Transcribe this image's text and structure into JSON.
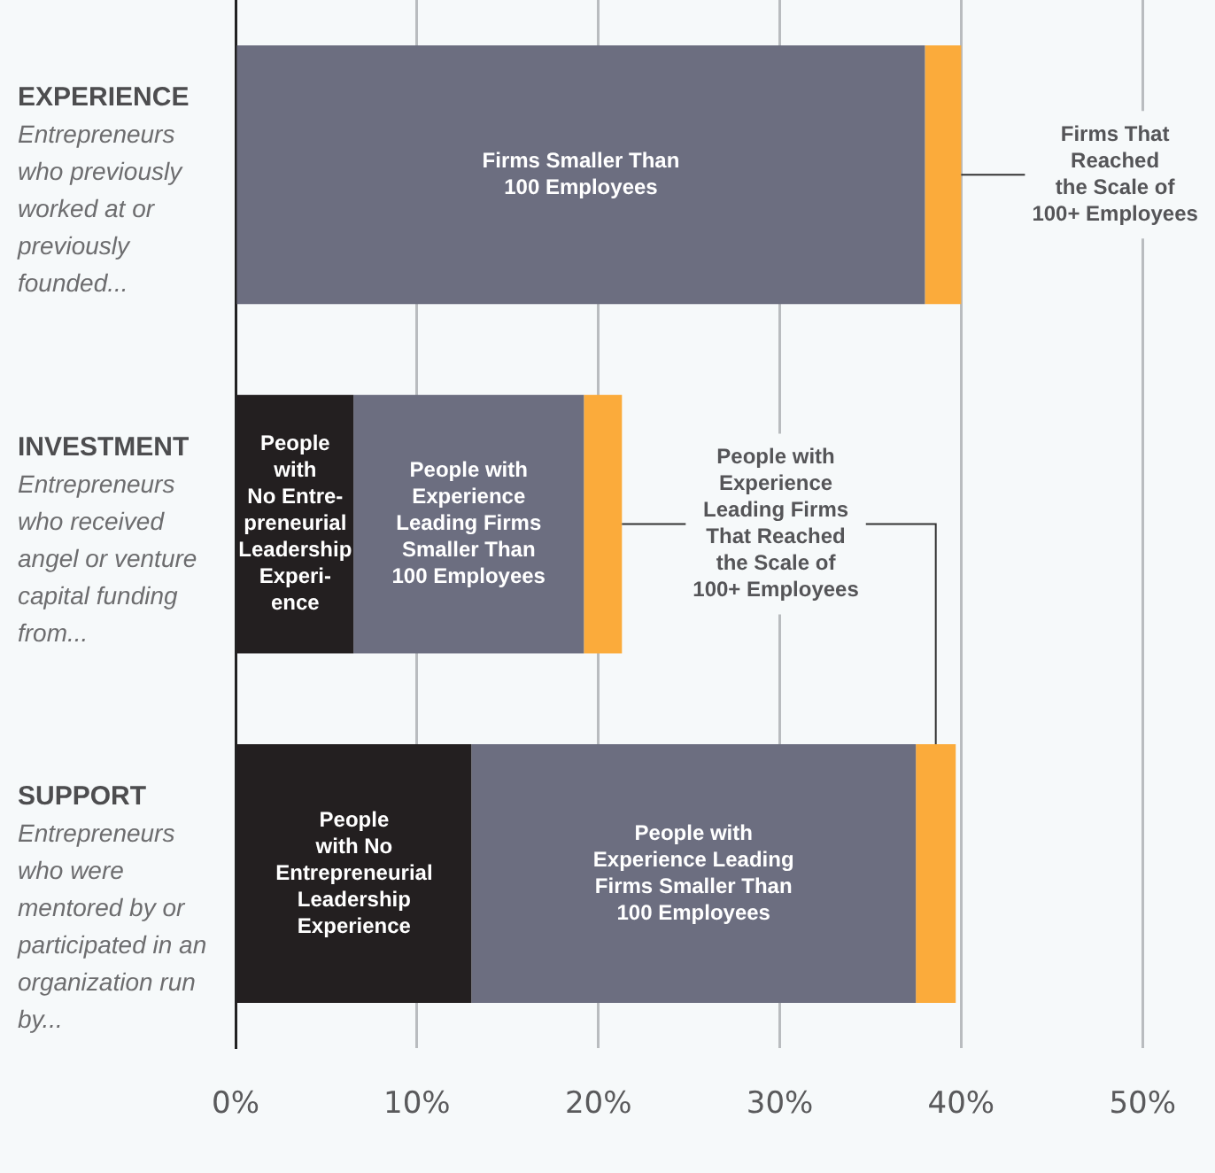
{
  "chart_data": {
    "type": "bar",
    "orientation": "horizontal",
    "stacked": true,
    "categories": [
      "EXPERIENCE",
      "INVESTMENT",
      "SUPPORT"
    ],
    "series": [
      {
        "color": "#231f20",
        "values": [
          null,
          6.5,
          13.0
        ],
        "value_labels": [
          null,
          "People\nwith\nNo Entre-\npreneurial\nLeadership\nExperi-\nence",
          "People\nwith No\nEntrepreneurial\nLeadership\nExperience"
        ]
      },
      {
        "color": "#6c6e80",
        "values": [
          38.0,
          12.7,
          24.5
        ],
        "value_labels": [
          "Firms Smaller Than\n100 Employees",
          "People with\nExperience\nLeading Firms\nSmaller Than\n100 Employees",
          "People with\nExperience Leading\nFirms Smaller Than\n100 Employees"
        ]
      },
      {
        "color": "#fbab3b",
        "values": [
          2.0,
          2.1,
          2.2
        ],
        "value_labels": [
          "Firms That\nReached\nthe Scale of\n100+ Employees",
          "People with\nExperience\nLeading Firms\nThat Reached\nthe Scale of\n100+ Employees",
          null
        ]
      }
    ],
    "xlim": [
      0,
      50
    ],
    "xticks": [
      {
        "value": 0,
        "label": "0%"
      },
      {
        "value": 10,
        "label": "10%"
      },
      {
        "value": 20,
        "label": "20%"
      },
      {
        "value": 30,
        "label": "30%"
      },
      {
        "value": 40,
        "label": "40%"
      },
      {
        "value": 50,
        "label": "50%"
      }
    ],
    "grid": "x",
    "legend": false,
    "annotations": [
      "Entrepreneurs who previously worked at or previously founded...",
      "Entrepreneurs who received angel or venture capital funding from...",
      "Entrepreneurs who were mentored by or participated in an organization run by..."
    ]
  }
}
